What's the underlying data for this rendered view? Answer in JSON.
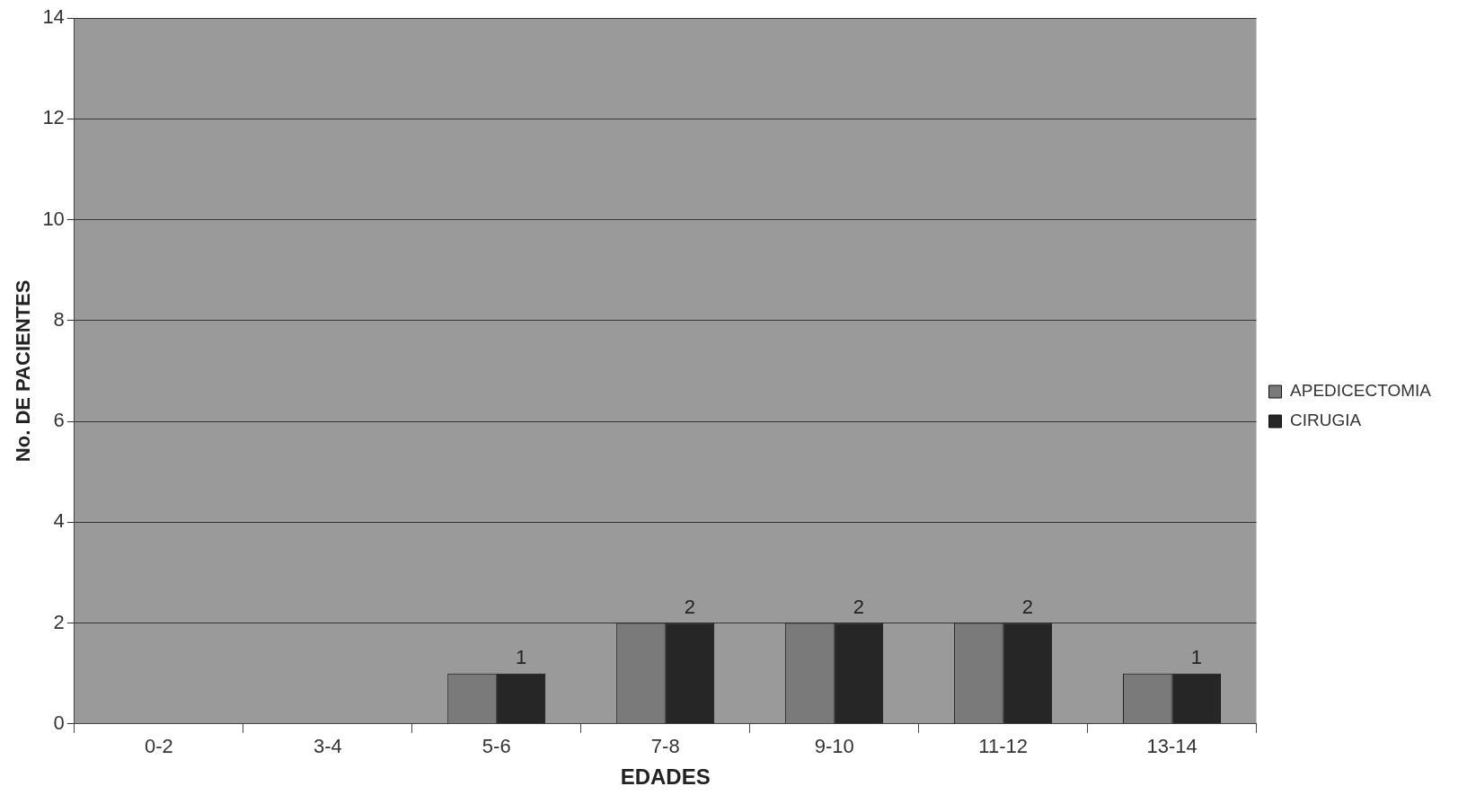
{
  "chart_data": {
    "type": "bar",
    "xlabel": "EDADES",
    "ylabel": "No. DE PACIENTES",
    "categories": [
      "0-2",
      "3-4",
      "5-6",
      "7-8",
      "9-10",
      "11-12",
      "13-14"
    ],
    "series": [
      {
        "name": "APEDICECTOMIA",
        "color": "#7a7a7a",
        "values": [
          0,
          0,
          1,
          2,
          2,
          2,
          1
        ]
      },
      {
        "name": "CIRUGIA",
        "color": "#262626",
        "values": [
          0,
          0,
          1,
          2,
          2,
          2,
          1
        ],
        "value_labels": [
          null,
          null,
          "1",
          "2",
          "2",
          "2",
          "1"
        ]
      }
    ],
    "ylim": [
      0,
      14
    ],
    "yticks": [
      0,
      2,
      4,
      6,
      8,
      10,
      12,
      14
    ],
    "grid": "y",
    "legend": "right"
  }
}
